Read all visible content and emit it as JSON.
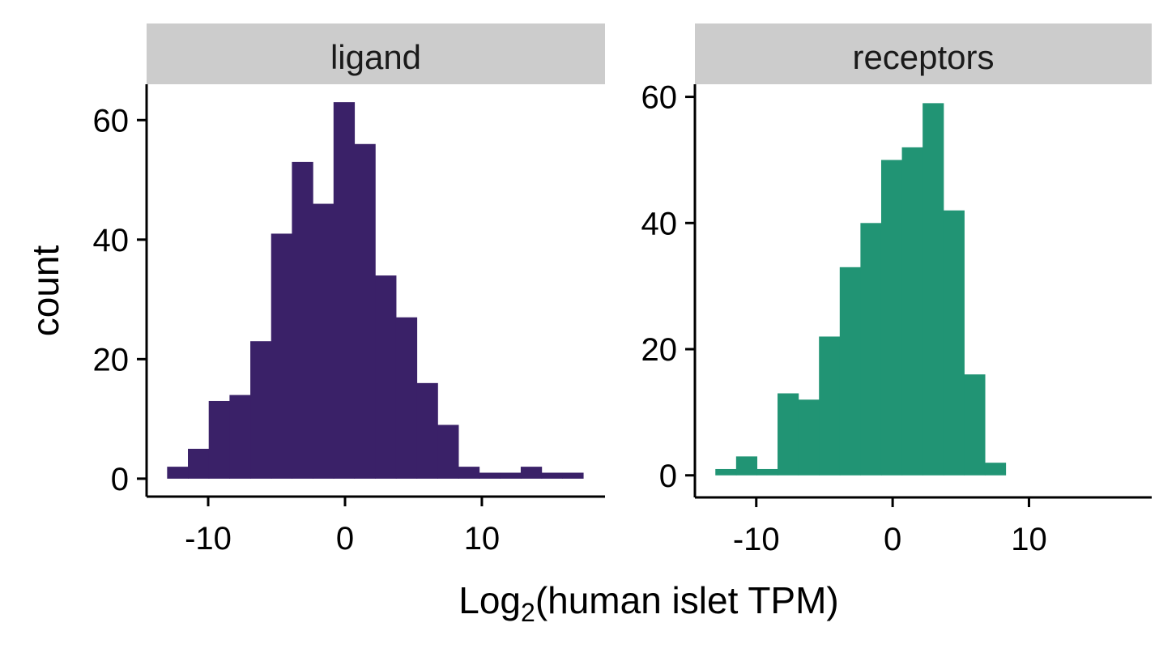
{
  "chart_data": {
    "type": "bar",
    "subtype": "faceted-histogram",
    "xlabel_parts": {
      "main": "Log",
      "subscript": "2",
      "rest": "(human islet TPM)"
    },
    "ylabel": "count",
    "xlim": [
      -14.5,
      19
    ],
    "x_ticks": [
      -10,
      0,
      10
    ],
    "x_tick_labels": [
      "-10",
      "0",
      "10"
    ],
    "grid": false,
    "legend": "none",
    "bin_width": 1.52,
    "facets": [
      {
        "label": "ligand",
        "color": "#3a2168",
        "ylim": [
          -3,
          66
        ],
        "y_ticks": [
          0,
          20,
          40,
          60
        ],
        "y_tick_labels": [
          "0",
          "20",
          "40",
          "60"
        ],
        "bins": [
          {
            "x0": -13.0,
            "x1": -11.48,
            "count": 2
          },
          {
            "x0": -11.48,
            "x1": -9.96,
            "count": 5
          },
          {
            "x0": -9.96,
            "x1": -8.44,
            "count": 13
          },
          {
            "x0": -8.44,
            "x1": -6.92,
            "count": 14
          },
          {
            "x0": -6.92,
            "x1": -5.4,
            "count": 23
          },
          {
            "x0": -5.4,
            "x1": -3.88,
            "count": 41
          },
          {
            "x0": -3.88,
            "x1": -2.36,
            "count": 53
          },
          {
            "x0": -2.36,
            "x1": -0.84,
            "count": 46
          },
          {
            "x0": -0.84,
            "x1": 0.68,
            "count": 63
          },
          {
            "x0": 0.68,
            "x1": 2.2,
            "count": 56
          },
          {
            "x0": 2.2,
            "x1": 3.72,
            "count": 34
          },
          {
            "x0": 3.72,
            "x1": 5.24,
            "count": 27
          },
          {
            "x0": 5.24,
            "x1": 6.76,
            "count": 16
          },
          {
            "x0": 6.76,
            "x1": 8.28,
            "count": 9
          },
          {
            "x0": 8.28,
            "x1": 9.8,
            "count": 2
          },
          {
            "x0": 9.8,
            "x1": 11.32,
            "count": 1
          },
          {
            "x0": 11.32,
            "x1": 12.84,
            "count": 1
          },
          {
            "x0": 12.84,
            "x1": 14.36,
            "count": 2
          },
          {
            "x0": 14.36,
            "x1": 15.88,
            "count": 1
          },
          {
            "x0": 15.88,
            "x1": 17.4,
            "count": 1
          }
        ]
      },
      {
        "label": "receptors",
        "color": "#219474",
        "ylim": [
          -3.5,
          62
        ],
        "y_ticks": [
          0,
          20,
          40,
          60
        ],
        "y_tick_labels": [
          "0",
          "20",
          "40",
          "60"
        ],
        "bins": [
          {
            "x0": -13.0,
            "x1": -11.48,
            "count": 1
          },
          {
            "x0": -11.48,
            "x1": -9.96,
            "count": 3
          },
          {
            "x0": -9.96,
            "x1": -8.44,
            "count": 1
          },
          {
            "x0": -8.44,
            "x1": -6.92,
            "count": 13
          },
          {
            "x0": -6.92,
            "x1": -5.4,
            "count": 12
          },
          {
            "x0": -5.4,
            "x1": -3.88,
            "count": 22
          },
          {
            "x0": -3.88,
            "x1": -2.36,
            "count": 33
          },
          {
            "x0": -2.36,
            "x1": -0.84,
            "count": 40
          },
          {
            "x0": -0.84,
            "x1": 0.68,
            "count": 50
          },
          {
            "x0": 0.68,
            "x1": 2.2,
            "count": 52
          },
          {
            "x0": 2.2,
            "x1": 3.72,
            "count": 59
          },
          {
            "x0": 3.72,
            "x1": 5.24,
            "count": 42
          },
          {
            "x0": 5.24,
            "x1": 6.76,
            "count": 16
          },
          {
            "x0": 6.76,
            "x1": 8.28,
            "count": 2
          }
        ]
      }
    ]
  }
}
